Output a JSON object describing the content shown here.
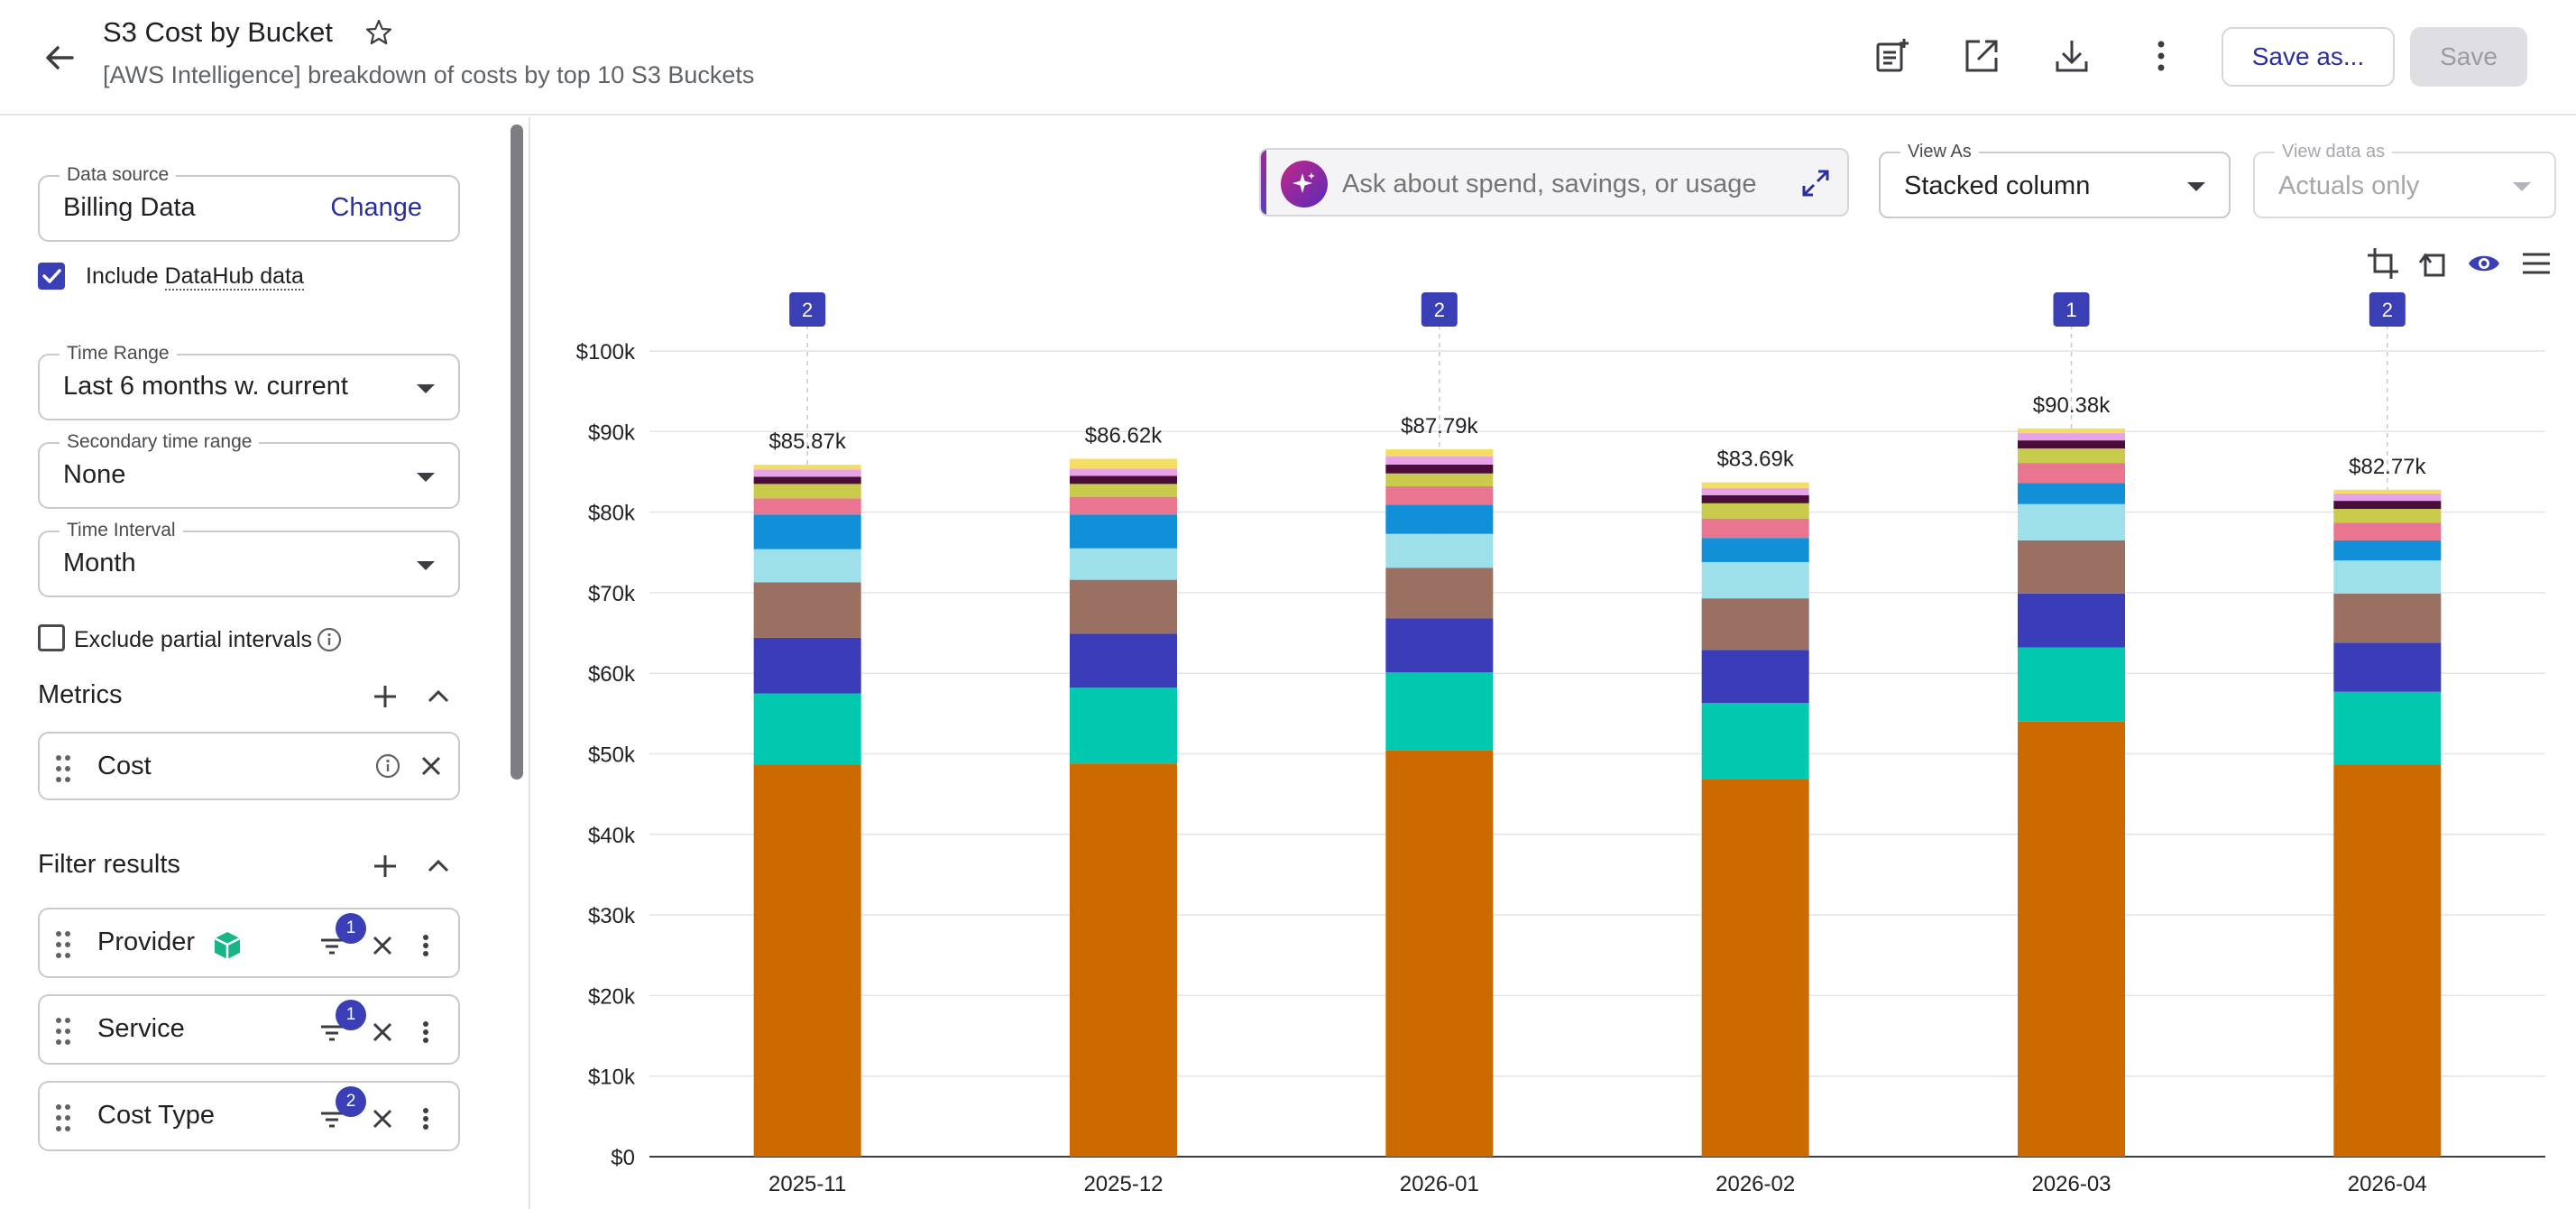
{
  "header": {
    "title": "S3 Cost by Bucket",
    "subtitle": "[AWS Intelligence] breakdown of costs by top 10 S3 Buckets",
    "save_as_label": "Save as...",
    "save_label": "Save",
    "icons": [
      "back-arrow-icon",
      "star-icon",
      "add-report-icon",
      "open-external-icon",
      "download-icon",
      "more-vertical-icon"
    ]
  },
  "sidebar": {
    "data_source": {
      "label": "Data source",
      "value": "Billing Data",
      "change_label": "Change"
    },
    "include_datahub": {
      "prefix": "Include",
      "link": "DataHub data",
      "checked": true
    },
    "time_range": {
      "label": "Time Range",
      "value": "Last 6 months w. current"
    },
    "secondary_time_range": {
      "label": "Secondary time range",
      "value": "None"
    },
    "time_interval": {
      "label": "Time Interval",
      "value": "Month"
    },
    "exclude_partial": {
      "label": "Exclude partial intervals",
      "checked": false
    },
    "metrics": {
      "title": "Metrics",
      "items": [
        {
          "label": "Cost"
        }
      ]
    },
    "filters": {
      "title": "Filter results",
      "items": [
        {
          "label": "Provider",
          "count": "1"
        },
        {
          "label": "Service",
          "count": "1"
        },
        {
          "label": "Cost Type",
          "count": "2"
        }
      ]
    }
  },
  "main": {
    "ai_search": {
      "placeholder": "Ask about spend, savings, or usage"
    },
    "view_as": {
      "label": "View As",
      "value": "Stacked column"
    },
    "view_data_as": {
      "label": "View data as",
      "value": "Actuals only"
    }
  },
  "colors": {
    "accent": "#3b3fb6",
    "series": [
      "#cc6a00",
      "#00c9b0",
      "#3a3cb8",
      "#9a7063",
      "#9ee0ea",
      "#1190d8",
      "#ea7591",
      "#c9cb4d",
      "#4a0d3a",
      "#e8a2e8",
      "#f3dd63"
    ]
  },
  "chart_data": {
    "type": "bar",
    "stacked": true,
    "categories": [
      "2025-11",
      "2025-12",
      "2026-01",
      "2026-02",
      "2026-03",
      "2026-04"
    ],
    "ylim": [
      0,
      100000
    ],
    "yticks": [
      "$0",
      "$10k",
      "$20k",
      "$30k",
      "$40k",
      "$50k",
      "$60k",
      "$70k",
      "$80k",
      "$90k",
      "$100k"
    ],
    "totals": [
      "$85.87k",
      "$86.62k",
      "$87.79k",
      "$83.69k",
      "$90.38k",
      "$82.77k"
    ],
    "annotation_counts": [
      "2",
      "",
      "2",
      "",
      "1",
      "2"
    ],
    "grid": true,
    "series": [
      {
        "values": [
          48700,
          48800,
          50400,
          46900,
          54000,
          48700
        ]
      },
      {
        "values": [
          8800,
          9400,
          9700,
          9400,
          9200,
          9000
        ]
      },
      {
        "values": [
          6900,
          6700,
          6700,
          6600,
          6700,
          6100
        ]
      },
      {
        "values": [
          6900,
          6700,
          6300,
          6400,
          6600,
          6100
        ]
      },
      {
        "values": [
          4100,
          3900,
          4200,
          4500,
          4500,
          4100
        ]
      },
      {
        "values": [
          4300,
          4200,
          3600,
          3000,
          2600,
          2500
        ]
      },
      {
        "values": [
          2000,
          2200,
          2300,
          2400,
          2500,
          2200
        ]
      },
      {
        "values": [
          1800,
          1600,
          1600,
          1900,
          1800,
          1700
        ]
      },
      {
        "values": [
          900,
          1000,
          1100,
          1000,
          1000,
          1000
        ]
      },
      {
        "values": [
          900,
          900,
          1000,
          900,
          900,
          900
        ]
      },
      {
        "values": [
          570,
          1220,
          890,
          690,
          580,
          470
        ]
      }
    ]
  }
}
